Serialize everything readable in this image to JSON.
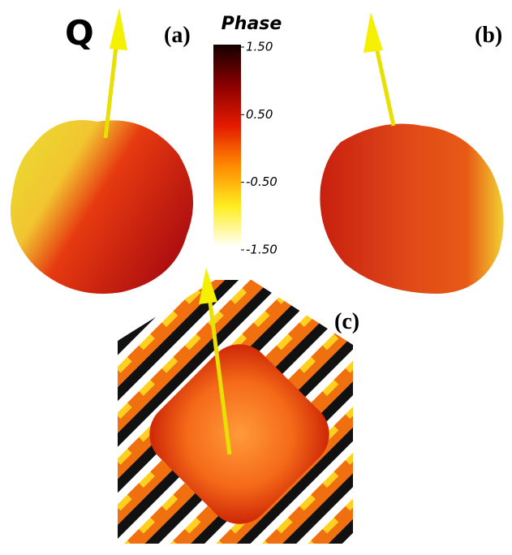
{
  "figure": {
    "vector_label": "Q",
    "panels": [
      "(a)",
      "(b)",
      "(c)"
    ],
    "colorbar": {
      "title": "Phase",
      "lim": [
        -1.5,
        1.5
      ],
      "ticks": [
        {
          "value": 1.5,
          "label": "1.50"
        },
        {
          "value": 0.5,
          "label": "0.50"
        },
        {
          "value": -0.5,
          "label": "-0.50"
        },
        {
          "value": -1.5,
          "label": "-1.50"
        }
      ]
    }
  }
}
